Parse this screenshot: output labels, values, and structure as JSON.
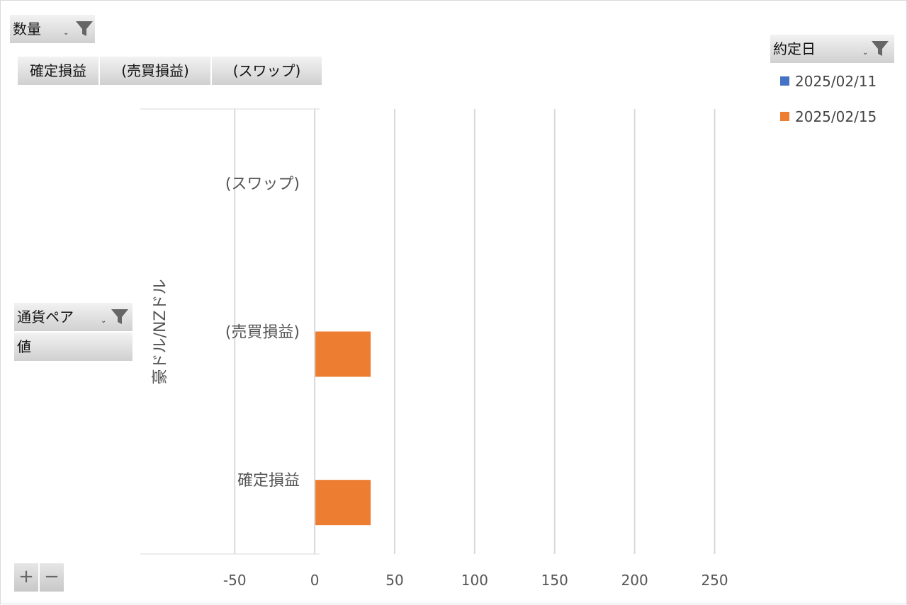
{
  "filter_buttons": {
    "values_field": "数量",
    "legend_field": "約定日",
    "axis_field": "通貨ペア",
    "values_row": "値"
  },
  "field_row": [
    "確定損益",
    "(売買損益)",
    "(スワップ)"
  ],
  "zoom": {
    "plus": "+",
    "minus": "−"
  },
  "colors": {
    "series_1": "#4472c4",
    "series_2": "#ed7d31",
    "gridline": "#d9d9d9",
    "button_bg": "#d9d9d9"
  },
  "icons": {
    "filter": "funnel-filter-icon",
    "dropdown": "dropdown-arrow-icon"
  },
  "chart_data": {
    "type": "bar",
    "orientation": "horizontal",
    "group_label": "豪ドル/NZドル",
    "categories": [
      "確定損益",
      "(売買損益)",
      "(スワップ)"
    ],
    "series": [
      {
        "name": "2025/02/11",
        "color": "#4472c4",
        "values": [
          0,
          0,
          0
        ]
      },
      {
        "name": "2025/02/15",
        "color": "#ed7d31",
        "values": [
          35,
          35,
          0
        ]
      }
    ],
    "x_ticks": [
      -50,
      0,
      50,
      100,
      150,
      200,
      250
    ],
    "x_tick_labels": [
      "-50",
      "0",
      "50",
      "100",
      "150",
      "200",
      "250"
    ],
    "xlim": [
      -109,
      275
    ],
    "grid": true,
    "legend_position": "top-right"
  }
}
